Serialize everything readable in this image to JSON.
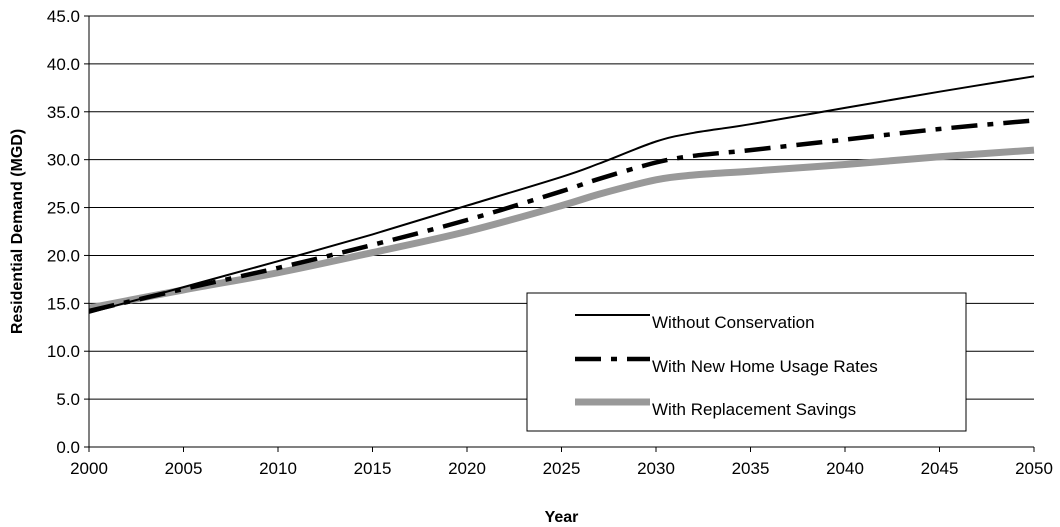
{
  "chart_data": {
    "type": "line",
    "title": "",
    "xlabel": "Year",
    "ylabel": "Residential Demand (MGD)",
    "xlim": [
      2000,
      2050
    ],
    "ylim": [
      0,
      45
    ],
    "x_ticks": [
      "2000",
      "2005",
      "2010",
      "2015",
      "2020",
      "2025",
      "2030",
      "2035",
      "2040",
      "2045",
      "2050"
    ],
    "y_ticks": [
      "0.0",
      "5.0",
      "10.0",
      "15.0",
      "20.0",
      "25.0",
      "30.0",
      "35.0",
      "40.0",
      "45.0"
    ],
    "grid": "horizontal",
    "legend_position": "bottom-right",
    "x": [
      2000,
      2005,
      2010,
      2015,
      2020,
      2025,
      2027,
      2030,
      2032,
      2035,
      2040,
      2045,
      2050
    ],
    "series": [
      {
        "name": "Without Conservation",
        "style": "solid-thin",
        "color": "#000000",
        "values": [
          14.0,
          16.7,
          19.4,
          22.2,
          25.2,
          28.2,
          29.6,
          31.9,
          32.8,
          33.7,
          35.4,
          37.1,
          38.7
        ]
      },
      {
        "name": "With New Home Usage Rates",
        "style": "dash-dot-thick",
        "color": "#000000",
        "values": [
          14.2,
          16.5,
          18.7,
          21.1,
          23.7,
          26.7,
          28.0,
          29.7,
          30.4,
          31.0,
          32.1,
          33.2,
          34.1
        ]
      },
      {
        "name": "With Replacement Savings",
        "style": "solid-thick",
        "color": "#999999",
        "values": [
          14.5,
          16.4,
          18.2,
          20.3,
          22.5,
          25.2,
          26.4,
          27.9,
          28.4,
          28.8,
          29.5,
          30.3,
          31.0
        ]
      }
    ]
  }
}
